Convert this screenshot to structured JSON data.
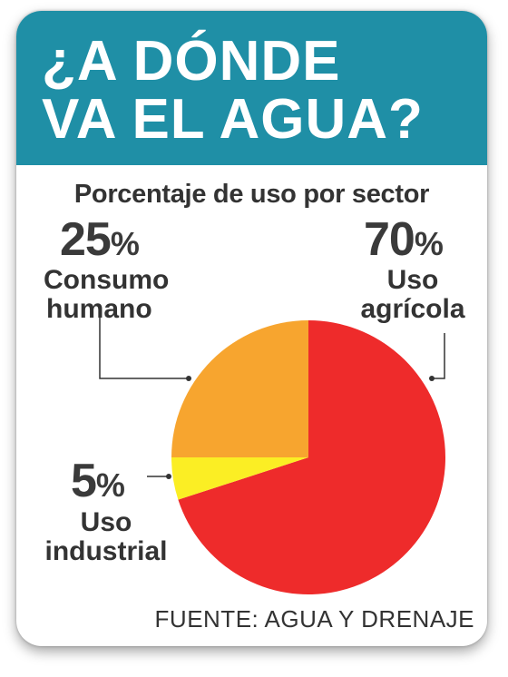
{
  "header": {
    "title_line1": "¿A DÓNDE",
    "title_line2": "VA EL AGUA?",
    "color": "#1f8fa6"
  },
  "chart_data": {
    "type": "pie",
    "title": "¿A DÓNDE VA EL AGUA?",
    "subtitle": "Porcentaje de uso por sector",
    "slices": [
      {
        "label": "Uso agrícola",
        "value": 70,
        "value_text": "70",
        "color": "#ee2b2b"
      },
      {
        "label": "Uso industrial",
        "value": 5,
        "value_text": "5",
        "color": "#fbee24"
      },
      {
        "label": "Consumo humano",
        "value": 25,
        "value_text": "25",
        "color": "#f7a52f"
      }
    ],
    "percent_symbol": "%"
  },
  "labels": {
    "consumo_line1": "Consumo",
    "consumo_line2": "humano",
    "agricola_line1": "Uso",
    "agricola_line2": "agrícola",
    "industrial_line1": "Uso",
    "industrial_line2": "industrial"
  },
  "source": "FUENTE: AGUA Y DRENAJE"
}
